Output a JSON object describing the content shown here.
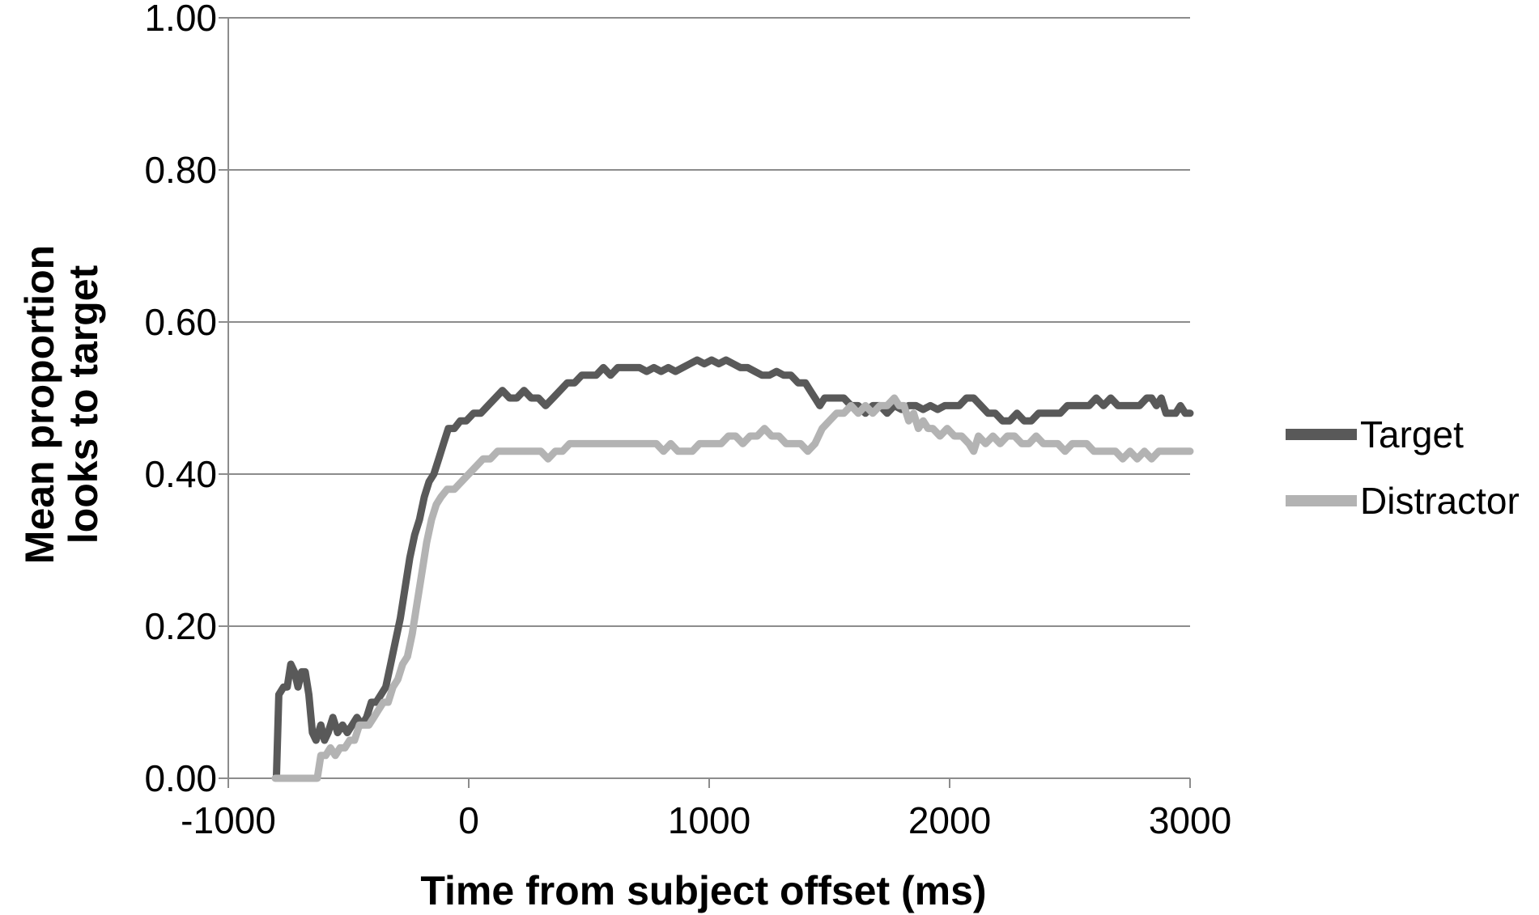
{
  "chart_data": {
    "type": "line",
    "title": "",
    "xlabel": "Time from subject offset (ms)",
    "ylabel": "Mean proportion looks to target",
    "ylabel_lines": [
      "Mean proportion",
      "looks to target"
    ],
    "xlim": [
      -1000,
      3000
    ],
    "ylim": [
      0,
      1
    ],
    "x_ticks": [
      -1000,
      0,
      1000,
      2000,
      3000
    ],
    "x_tick_labels": [
      "-1000",
      "0",
      "1000",
      "2000",
      "3000"
    ],
    "y_ticks": [
      0,
      0.2,
      0.4,
      0.6,
      0.8,
      1.0
    ],
    "y_tick_labels": [
      "0.00",
      "0.20",
      "0.40",
      "0.60",
      "0.80",
      "1.00"
    ],
    "grid": "horizontal",
    "legend_position": "right",
    "series": [
      {
        "name": "Target",
        "color": "#595959",
        "points": [
          [
            -800,
            0.0
          ],
          [
            -790,
            0.11
          ],
          [
            -770,
            0.12
          ],
          [
            -755,
            0.12
          ],
          [
            -740,
            0.15
          ],
          [
            -725,
            0.14
          ],
          [
            -710,
            0.12
          ],
          [
            -695,
            0.14
          ],
          [
            -680,
            0.14
          ],
          [
            -665,
            0.11
          ],
          [
            -650,
            0.06
          ],
          [
            -635,
            0.05
          ],
          [
            -615,
            0.07
          ],
          [
            -600,
            0.05
          ],
          [
            -585,
            0.06
          ],
          [
            -565,
            0.08
          ],
          [
            -545,
            0.06
          ],
          [
            -525,
            0.07
          ],
          [
            -505,
            0.06
          ],
          [
            -485,
            0.07
          ],
          [
            -465,
            0.08
          ],
          [
            -445,
            0.07
          ],
          [
            -425,
            0.08
          ],
          [
            -405,
            0.1
          ],
          [
            -385,
            0.1
          ],
          [
            -365,
            0.11
          ],
          [
            -345,
            0.12
          ],
          [
            -325,
            0.15
          ],
          [
            -305,
            0.18
          ],
          [
            -285,
            0.21
          ],
          [
            -265,
            0.25
          ],
          [
            -245,
            0.29
          ],
          [
            -225,
            0.32
          ],
          [
            -205,
            0.34
          ],
          [
            -185,
            0.37
          ],
          [
            -165,
            0.39
          ],
          [
            -145,
            0.4
          ],
          [
            -125,
            0.42
          ],
          [
            -105,
            0.44
          ],
          [
            -85,
            0.46
          ],
          [
            -60,
            0.46
          ],
          [
            -35,
            0.47
          ],
          [
            -10,
            0.47
          ],
          [
            20,
            0.48
          ],
          [
            50,
            0.48
          ],
          [
            80,
            0.49
          ],
          [
            110,
            0.5
          ],
          [
            140,
            0.51
          ],
          [
            170,
            0.5
          ],
          [
            200,
            0.5
          ],
          [
            230,
            0.51
          ],
          [
            260,
            0.5
          ],
          [
            290,
            0.5
          ],
          [
            320,
            0.49
          ],
          [
            350,
            0.5
          ],
          [
            380,
            0.51
          ],
          [
            410,
            0.52
          ],
          [
            440,
            0.52
          ],
          [
            470,
            0.53
          ],
          [
            500,
            0.53
          ],
          [
            530,
            0.53
          ],
          [
            560,
            0.54
          ],
          [
            590,
            0.53
          ],
          [
            620,
            0.54
          ],
          [
            650,
            0.54
          ],
          [
            680,
            0.54
          ],
          [
            710,
            0.54
          ],
          [
            740,
            0.535
          ],
          [
            770,
            0.54
          ],
          [
            800,
            0.535
          ],
          [
            830,
            0.54
          ],
          [
            860,
            0.535
          ],
          [
            890,
            0.54
          ],
          [
            920,
            0.545
          ],
          [
            950,
            0.55
          ],
          [
            980,
            0.545
          ],
          [
            1010,
            0.55
          ],
          [
            1040,
            0.545
          ],
          [
            1070,
            0.55
          ],
          [
            1100,
            0.545
          ],
          [
            1130,
            0.54
          ],
          [
            1160,
            0.54
          ],
          [
            1190,
            0.535
          ],
          [
            1220,
            0.53
          ],
          [
            1250,
            0.53
          ],
          [
            1280,
            0.535
          ],
          [
            1310,
            0.53
          ],
          [
            1340,
            0.53
          ],
          [
            1370,
            0.52
          ],
          [
            1400,
            0.52
          ],
          [
            1420,
            0.51
          ],
          [
            1440,
            0.5
          ],
          [
            1460,
            0.49
          ],
          [
            1480,
            0.5
          ],
          [
            1500,
            0.5
          ],
          [
            1530,
            0.5
          ],
          [
            1560,
            0.5
          ],
          [
            1590,
            0.49
          ],
          [
            1620,
            0.49
          ],
          [
            1650,
            0.48
          ],
          [
            1680,
            0.49
          ],
          [
            1710,
            0.49
          ],
          [
            1740,
            0.48
          ],
          [
            1770,
            0.49
          ],
          [
            1800,
            0.485
          ],
          [
            1830,
            0.49
          ],
          [
            1860,
            0.49
          ],
          [
            1890,
            0.485
          ],
          [
            1920,
            0.49
          ],
          [
            1950,
            0.485
          ],
          [
            1980,
            0.49
          ],
          [
            2010,
            0.49
          ],
          [
            2040,
            0.49
          ],
          [
            2070,
            0.5
          ],
          [
            2100,
            0.5
          ],
          [
            2130,
            0.49
          ],
          [
            2160,
            0.48
          ],
          [
            2190,
            0.48
          ],
          [
            2220,
            0.47
          ],
          [
            2250,
            0.47
          ],
          [
            2280,
            0.48
          ],
          [
            2310,
            0.47
          ],
          [
            2340,
            0.47
          ],
          [
            2370,
            0.48
          ],
          [
            2400,
            0.48
          ],
          [
            2430,
            0.48
          ],
          [
            2460,
            0.48
          ],
          [
            2490,
            0.49
          ],
          [
            2520,
            0.49
          ],
          [
            2550,
            0.49
          ],
          [
            2580,
            0.49
          ],
          [
            2610,
            0.5
          ],
          [
            2640,
            0.49
          ],
          [
            2670,
            0.5
          ],
          [
            2700,
            0.49
          ],
          [
            2730,
            0.49
          ],
          [
            2760,
            0.49
          ],
          [
            2790,
            0.49
          ],
          [
            2820,
            0.5
          ],
          [
            2840,
            0.5
          ],
          [
            2860,
            0.49
          ],
          [
            2880,
            0.5
          ],
          [
            2900,
            0.48
          ],
          [
            2920,
            0.48
          ],
          [
            2940,
            0.48
          ],
          [
            2960,
            0.49
          ],
          [
            2980,
            0.48
          ],
          [
            3000,
            0.48
          ]
        ]
      },
      {
        "name": "Distractor",
        "color": "#b3b3b3",
        "points": [
          [
            -805,
            0.0
          ],
          [
            -720,
            0.0
          ],
          [
            -660,
            0.0
          ],
          [
            -630,
            0.0
          ],
          [
            -615,
            0.03
          ],
          [
            -595,
            0.03
          ],
          [
            -575,
            0.04
          ],
          [
            -555,
            0.03
          ],
          [
            -535,
            0.04
          ],
          [
            -515,
            0.04
          ],
          [
            -495,
            0.05
          ],
          [
            -475,
            0.05
          ],
          [
            -455,
            0.07
          ],
          [
            -435,
            0.07
          ],
          [
            -415,
            0.07
          ],
          [
            -395,
            0.08
          ],
          [
            -375,
            0.09
          ],
          [
            -355,
            0.1
          ],
          [
            -335,
            0.1
          ],
          [
            -315,
            0.12
          ],
          [
            -295,
            0.13
          ],
          [
            -275,
            0.15
          ],
          [
            -255,
            0.16
          ],
          [
            -235,
            0.19
          ],
          [
            -215,
            0.23
          ],
          [
            -195,
            0.27
          ],
          [
            -175,
            0.31
          ],
          [
            -155,
            0.34
          ],
          [
            -135,
            0.36
          ],
          [
            -115,
            0.37
          ],
          [
            -90,
            0.38
          ],
          [
            -60,
            0.38
          ],
          [
            -30,
            0.39
          ],
          [
            0,
            0.4
          ],
          [
            30,
            0.41
          ],
          [
            60,
            0.42
          ],
          [
            90,
            0.42
          ],
          [
            120,
            0.43
          ],
          [
            150,
            0.43
          ],
          [
            180,
            0.43
          ],
          [
            210,
            0.43
          ],
          [
            240,
            0.43
          ],
          [
            270,
            0.43
          ],
          [
            300,
            0.43
          ],
          [
            330,
            0.42
          ],
          [
            360,
            0.43
          ],
          [
            390,
            0.43
          ],
          [
            420,
            0.44
          ],
          [
            450,
            0.44
          ],
          [
            480,
            0.44
          ],
          [
            510,
            0.44
          ],
          [
            540,
            0.44
          ],
          [
            570,
            0.44
          ],
          [
            600,
            0.44
          ],
          [
            630,
            0.44
          ],
          [
            660,
            0.44
          ],
          [
            690,
            0.44
          ],
          [
            720,
            0.44
          ],
          [
            750,
            0.44
          ],
          [
            780,
            0.44
          ],
          [
            810,
            0.43
          ],
          [
            840,
            0.44
          ],
          [
            870,
            0.43
          ],
          [
            900,
            0.43
          ],
          [
            930,
            0.43
          ],
          [
            960,
            0.44
          ],
          [
            990,
            0.44
          ],
          [
            1020,
            0.44
          ],
          [
            1050,
            0.44
          ],
          [
            1080,
            0.45
          ],
          [
            1110,
            0.45
          ],
          [
            1140,
            0.44
          ],
          [
            1170,
            0.45
          ],
          [
            1200,
            0.45
          ],
          [
            1230,
            0.46
          ],
          [
            1260,
            0.45
          ],
          [
            1290,
            0.45
          ],
          [
            1320,
            0.44
          ],
          [
            1350,
            0.44
          ],
          [
            1380,
            0.44
          ],
          [
            1410,
            0.43
          ],
          [
            1440,
            0.44
          ],
          [
            1470,
            0.46
          ],
          [
            1500,
            0.47
          ],
          [
            1530,
            0.48
          ],
          [
            1560,
            0.48
          ],
          [
            1590,
            0.49
          ],
          [
            1620,
            0.48
          ],
          [
            1650,
            0.49
          ],
          [
            1680,
            0.48
          ],
          [
            1710,
            0.49
          ],
          [
            1740,
            0.49
          ],
          [
            1770,
            0.5
          ],
          [
            1790,
            0.49
          ],
          [
            1810,
            0.49
          ],
          [
            1830,
            0.47
          ],
          [
            1850,
            0.48
          ],
          [
            1870,
            0.46
          ],
          [
            1890,
            0.47
          ],
          [
            1910,
            0.46
          ],
          [
            1930,
            0.46
          ],
          [
            1960,
            0.45
          ],
          [
            1990,
            0.46
          ],
          [
            2020,
            0.45
          ],
          [
            2050,
            0.45
          ],
          [
            2080,
            0.44
          ],
          [
            2100,
            0.43
          ],
          [
            2120,
            0.45
          ],
          [
            2150,
            0.44
          ],
          [
            2180,
            0.45
          ],
          [
            2210,
            0.44
          ],
          [
            2240,
            0.45
          ],
          [
            2270,
            0.45
          ],
          [
            2300,
            0.44
          ],
          [
            2330,
            0.44
          ],
          [
            2360,
            0.45
          ],
          [
            2390,
            0.44
          ],
          [
            2420,
            0.44
          ],
          [
            2450,
            0.44
          ],
          [
            2480,
            0.43
          ],
          [
            2510,
            0.44
          ],
          [
            2540,
            0.44
          ],
          [
            2570,
            0.44
          ],
          [
            2600,
            0.43
          ],
          [
            2630,
            0.43
          ],
          [
            2660,
            0.43
          ],
          [
            2690,
            0.43
          ],
          [
            2720,
            0.42
          ],
          [
            2750,
            0.43
          ],
          [
            2780,
            0.42
          ],
          [
            2810,
            0.43
          ],
          [
            2840,
            0.42
          ],
          [
            2870,
            0.43
          ],
          [
            2900,
            0.43
          ],
          [
            2930,
            0.43
          ],
          [
            2960,
            0.43
          ],
          [
            3000,
            0.43
          ]
        ]
      }
    ]
  }
}
